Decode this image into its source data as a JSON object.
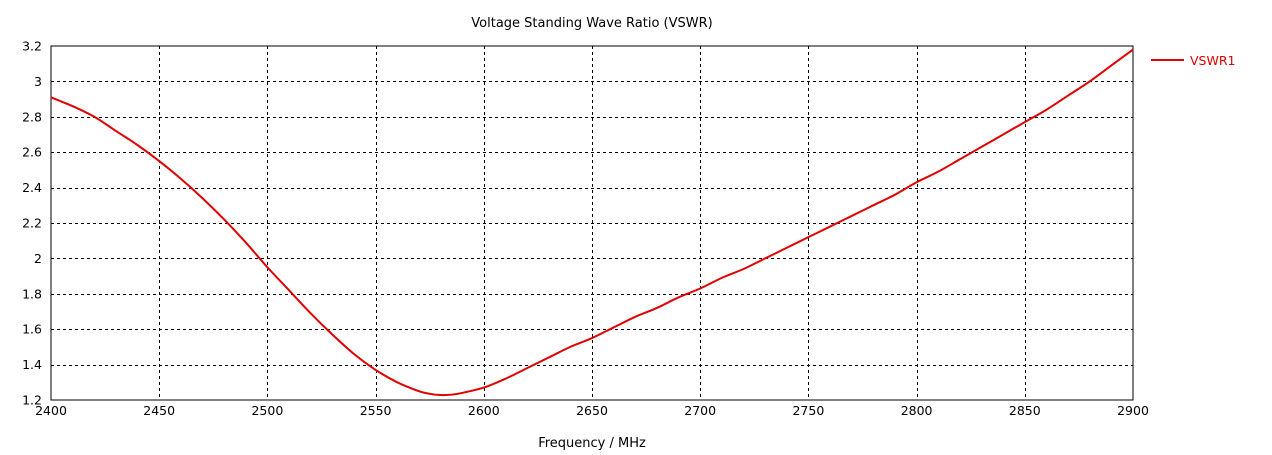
{
  "chart_data": {
    "type": "line",
    "title": "Voltage Standing Wave Ratio (VSWR)",
    "xlabel": "Frequency / MHz",
    "ylabel": "",
    "xlim": [
      2400,
      2900
    ],
    "ylim": [
      1.2,
      3.2
    ],
    "xticks": [
      2400,
      2450,
      2500,
      2550,
      2600,
      2650,
      2700,
      2750,
      2800,
      2850,
      2900
    ],
    "yticks": [
      1.2,
      1.4,
      1.6,
      1.8,
      2,
      2.2,
      2.4,
      2.6,
      2.8,
      3,
      3.2
    ],
    "grid": true,
    "legend": "right",
    "colors": {
      "series": "#e00000",
      "grid": "#000000",
      "axis": "#000000"
    },
    "series": [
      {
        "name": "VSWR1",
        "x": [
          2400,
          2410,
          2420,
          2430,
          2440,
          2450,
          2460,
          2470,
          2480,
          2490,
          2500,
          2510,
          2520,
          2530,
          2540,
          2550,
          2560,
          2570,
          2575,
          2580,
          2585,
          2590,
          2600,
          2610,
          2620,
          2630,
          2640,
          2650,
          2660,
          2670,
          2680,
          2690,
          2700,
          2710,
          2720,
          2730,
          2740,
          2750,
          2760,
          2770,
          2780,
          2790,
          2800,
          2810,
          2820,
          2830,
          2840,
          2850,
          2860,
          2870,
          2880,
          2890,
          2900
        ],
        "y": [
          2.91,
          2.86,
          2.8,
          2.72,
          2.64,
          2.55,
          2.45,
          2.34,
          2.22,
          2.09,
          1.95,
          1.82,
          1.69,
          1.57,
          1.46,
          1.37,
          1.3,
          1.25,
          1.235,
          1.228,
          1.23,
          1.24,
          1.27,
          1.32,
          1.38,
          1.44,
          1.5,
          1.55,
          1.61,
          1.67,
          1.72,
          1.78,
          1.83,
          1.89,
          1.94,
          2.0,
          2.06,
          2.12,
          2.18,
          2.24,
          2.3,
          2.36,
          2.43,
          2.49,
          2.56,
          2.63,
          2.7,
          2.77,
          2.84,
          2.92,
          3.0,
          3.09,
          3.18
        ]
      }
    ]
  }
}
